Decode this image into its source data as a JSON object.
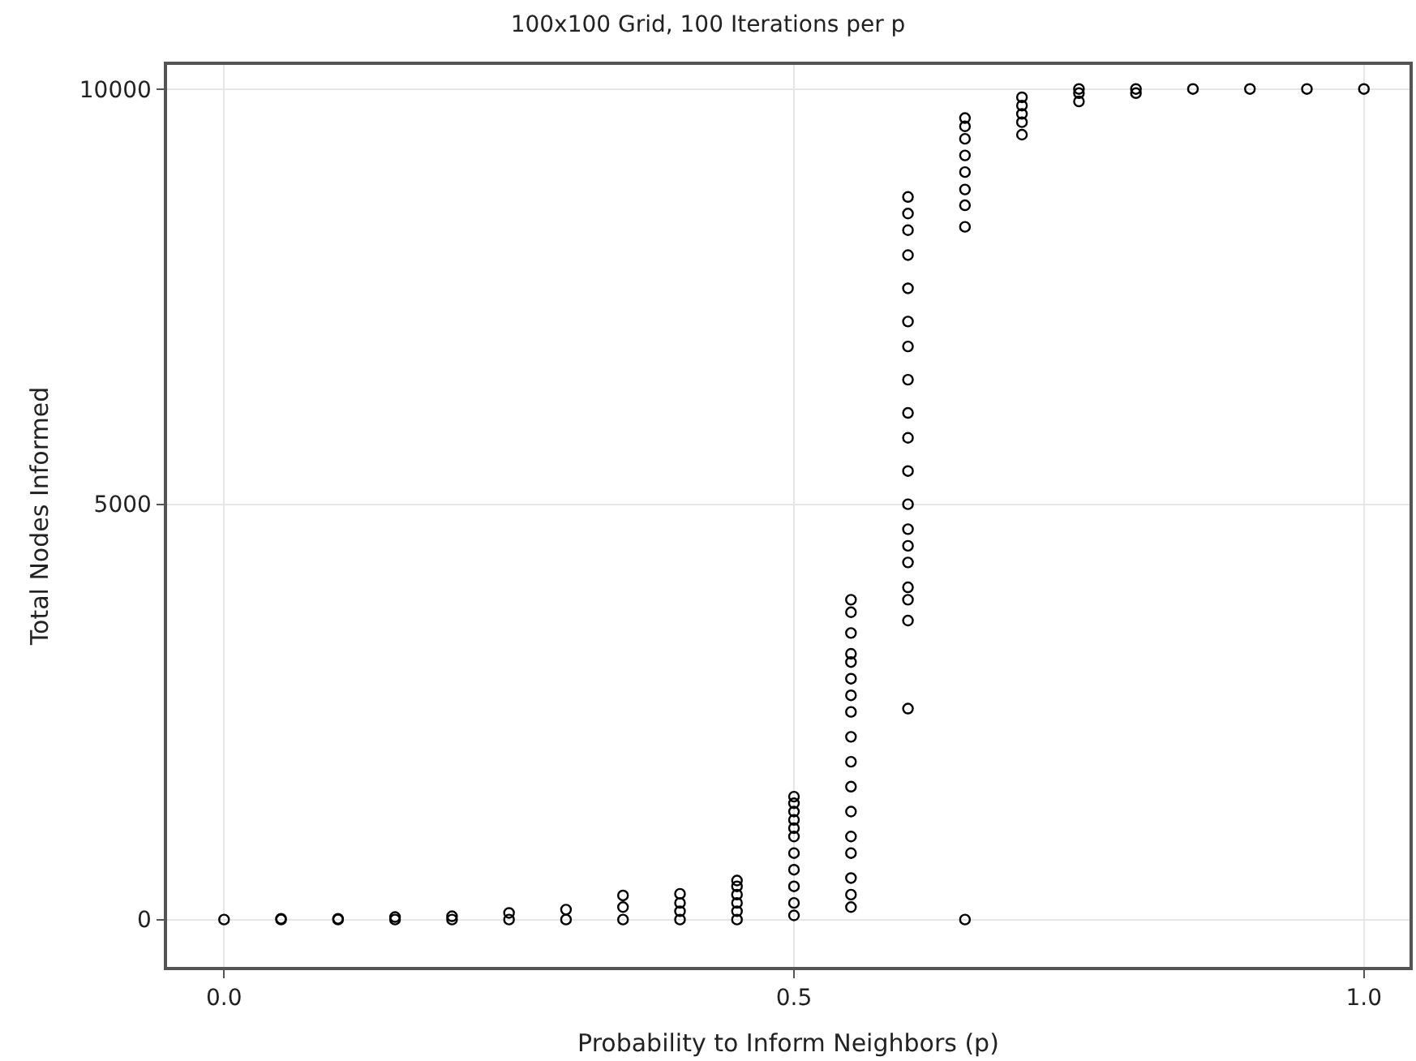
{
  "chart_data": {
    "type": "scatter",
    "title": "100x100 Grid, 100 Iterations per p",
    "xlabel": "Probability to Inform Neighbors (p)",
    "ylabel": "Total Nodes Informed",
    "xlim": [
      -0.05,
      1.04
    ],
    "ylim": [
      -570,
      10290
    ],
    "xticks": [
      {
        "value": 0,
        "label": "0.0"
      },
      0.5,
      {
        "value": 1,
        "label": "1.0"
      }
    ],
    "yticks": [
      0,
      5000,
      10000
    ],
    "grid": true,
    "marker": "circle",
    "series": [
      {
        "color": "#000000",
        "x": [
          0,
          0.05,
          0.05,
          0.1,
          0.1,
          0.15,
          0.15,
          0.2,
          0.2,
          0.25,
          0.25,
          0.3,
          0.3,
          0.35,
          0.35,
          0.35,
          0.4,
          0.4,
          0.4,
          0.4,
          0.45,
          0.45,
          0.45,
          0.45,
          0.45,
          0.45,
          0.5,
          0.5,
          0.5,
          0.5,
          0.5,
          0.5,
          0.5,
          0.5,
          0.5,
          0.5,
          0.5,
          0.55,
          0.55,
          0.55,
          0.55,
          0.55,
          0.55,
          0.55,
          0.55,
          0.55,
          0.55,
          0.55,
          0.55,
          0.55,
          0.55,
          0.55,
          0.55,
          0.55,
          0.6,
          0.6,
          0.6,
          0.6,
          0.6,
          0.6,
          0.6,
          0.6,
          0.6,
          0.6,
          0.6,
          0.6,
          0.6,
          0.6,
          0.6,
          0.6,
          0.6,
          0.6,
          0.6,
          0.65,
          0.65,
          0.65,
          0.65,
          0.65,
          0.65,
          0.65,
          0.65,
          0.65,
          0.7,
          0.7,
          0.7,
          0.7,
          0.7,
          0.75,
          0.75,
          0.75,
          0.8,
          0.8,
          0.85,
          0.9,
          0.95,
          1.0
        ],
        "values": [
          0,
          0,
          10,
          0,
          10,
          0,
          30,
          0,
          40,
          0,
          80,
          0,
          120,
          0,
          150,
          290,
          0,
          100,
          200,
          310,
          0,
          100,
          200,
          300,
          400,
          470,
          50,
          200,
          400,
          600,
          800,
          1000,
          1100,
          1200,
          1300,
          1400,
          1480,
          150,
          300,
          500,
          800,
          1000,
          1300,
          1600,
          1900,
          2200,
          2500,
          2700,
          2900,
          3100,
          3200,
          3450,
          3700,
          3850,
          8700,
          8500,
          8300,
          8000,
          7600,
          7200,
          6900,
          6500,
          6100,
          5800,
          5400,
          5000,
          4700,
          4500,
          4300,
          4000,
          3850,
          3600,
          2540,
          0,
          8340,
          8600,
          8790,
          9000,
          9200,
          9400,
          9550,
          9650,
          9450,
          9600,
          9700,
          9800,
          9900,
          9850,
          9950,
          10000,
          9950,
          10000,
          10000,
          10000,
          10000,
          10000
        ]
      }
    ]
  }
}
